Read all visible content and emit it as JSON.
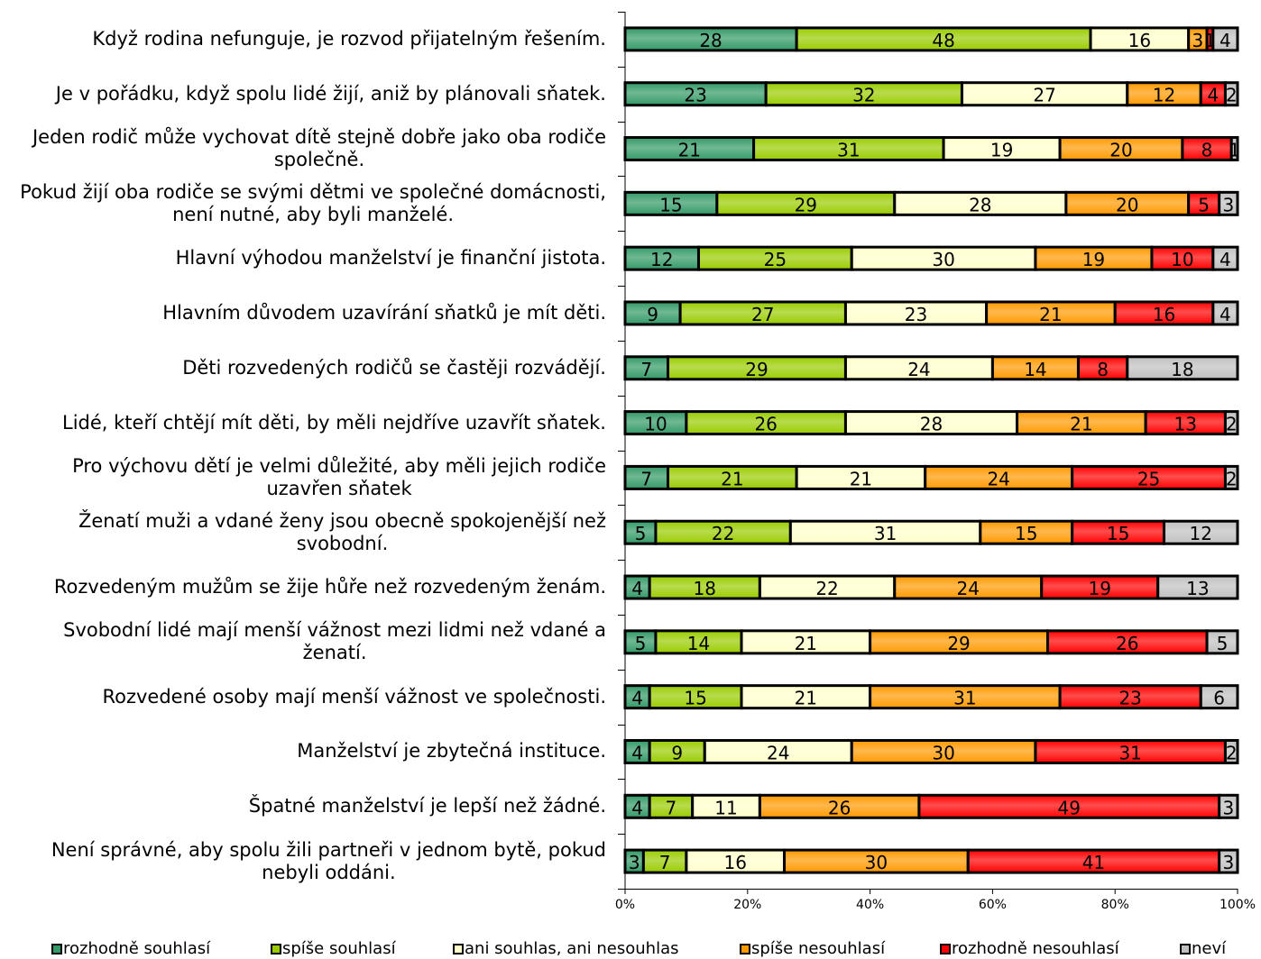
{
  "chart_data": {
    "type": "bar",
    "orientation": "horizontal",
    "stacking": "100%",
    "xlim": [
      0,
      100
    ],
    "x_tick_labels": [
      "0%",
      "20%",
      "40%",
      "60%",
      "80%",
      "100%"
    ],
    "grid": false,
    "legend_position": "bottom",
    "categories": [
      "Když rodina nefunguje, je rozvod přijatelným řešením.",
      "Je v pořádku, když spolu lidé žijí, aniž by plánovali sňatek.",
      "Jeden rodič může vychovat dítě stejně dobře jako oba rodiče\nspolečně.",
      "Pokud žijí oba rodiče se svými dětmi ve společné domácnosti,\nnení nutné, aby byli manželé.",
      "Hlavní výhodou manželství je finanční jistota.",
      "Hlavním důvodem uzavírání sňatků je mít děti.",
      "Děti rozvedených rodičů se častěji rozvádějí.",
      "Lidé, kteří chtějí mít děti, by měli nejdříve uzavřít sňatek.",
      "Pro výchovu dětí je velmi důležité, aby měli jejich rodiče\nuzavřen sňatek",
      "Ženatí muži a vdané ženy jsou obecně spokojenější než\nsvobodní.",
      "Rozvedeným mužům se žije hůře než rozvedeným ženám.",
      "Svobodní lidé mají menší vážnost mezi lidmi než vdané a\nženatí.",
      "Rozvedené osoby mají menší vážnost ve společnosti.",
      "Manželství je zbytečná instituce.",
      "Špatné manželství je lepší než žádné.",
      "Není správné, aby spolu žili partneři v jednom bytě, pokud\nnebyli oddáni."
    ],
    "series": [
      {
        "name": "rozhodně souhlasí",
        "color": "#339966",
        "values": [
          28,
          23,
          21,
          15,
          12,
          9,
          7,
          10,
          7,
          5,
          4,
          5,
          4,
          4,
          4,
          3
        ]
      },
      {
        "name": "spíše souhlasí",
        "color": "#99cc00",
        "values": [
          48,
          32,
          31,
          29,
          25,
          27,
          29,
          26,
          21,
          22,
          18,
          14,
          15,
          9,
          7,
          7
        ]
      },
      {
        "name": "ani souhlas, ani nesouhlas",
        "color": "#ffffcc",
        "values": [
          16,
          27,
          19,
          28,
          30,
          23,
          24,
          28,
          21,
          31,
          22,
          21,
          21,
          24,
          11,
          16
        ]
      },
      {
        "name": "spíše nesouhlasí",
        "color": "#ff9900",
        "values": [
          3,
          12,
          20,
          20,
          19,
          21,
          14,
          21,
          24,
          15,
          24,
          29,
          31,
          30,
          26,
          30
        ]
      },
      {
        "name": "rozhodně nesouhlasí",
        "color": "#ff0000",
        "values": [
          1,
          4,
          8,
          5,
          10,
          16,
          8,
          13,
          25,
          15,
          19,
          26,
          23,
          31,
          49,
          41
        ]
      },
      {
        "name": "neví",
        "color": "#c0c0c0",
        "values": [
          4,
          2,
          1,
          3,
          4,
          4,
          18,
          2,
          2,
          12,
          13,
          5,
          6,
          2,
          3,
          3
        ]
      }
    ]
  }
}
